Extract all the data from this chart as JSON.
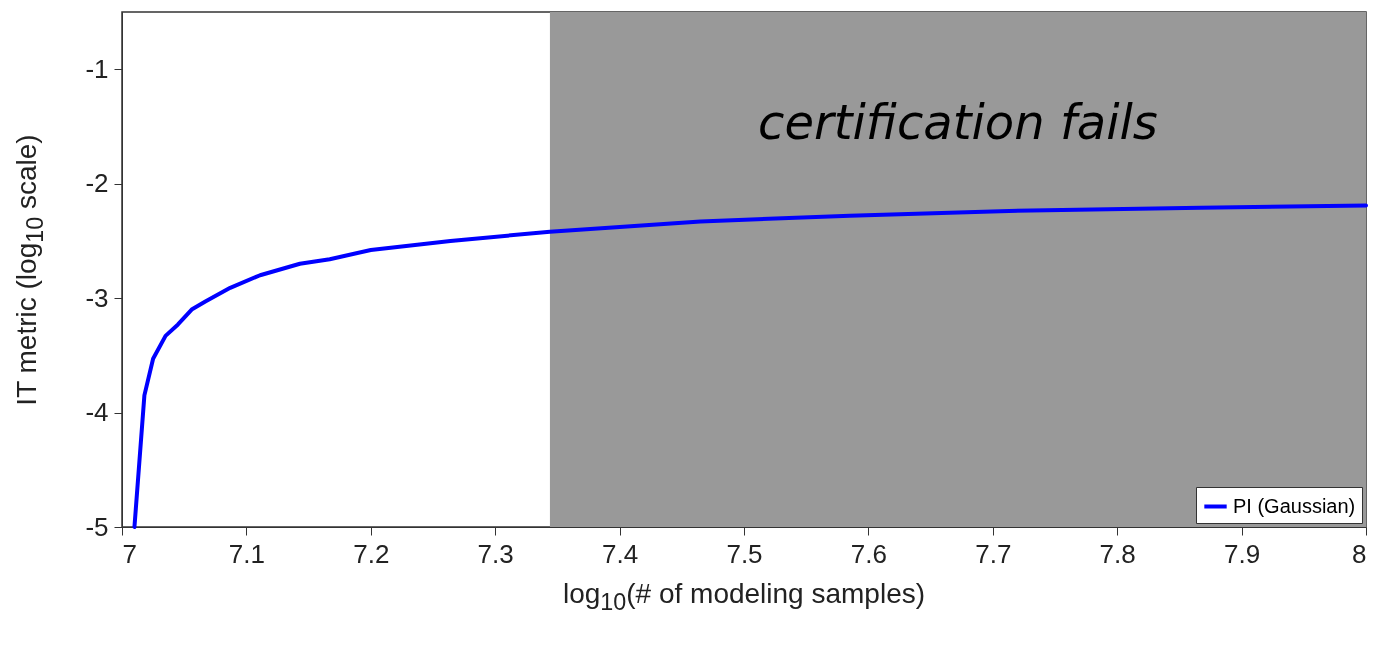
{
  "chart_data": {
    "type": "line",
    "xlabel": "log$_{10}$(# of modeling samples)",
    "ylabel": "IT metric (log$_{10}$ scale)",
    "series": [
      {
        "name": "PI (Gaussian)",
        "color": "#0000ff",
        "x": [
          7.01,
          7.018,
          7.025,
          7.035,
          7.045,
          7.056,
          7.067,
          7.087,
          7.111,
          7.143,
          7.167,
          7.2,
          7.264,
          7.344,
          7.465,
          7.585,
          7.706,
          7.867,
          8.0
        ],
        "values": [
          -5.0,
          -3.85,
          -3.53,
          -3.33,
          -3.23,
          -3.1,
          -3.03,
          -2.91,
          -2.8,
          -2.7,
          -2.66,
          -2.58,
          -2.5,
          -2.42,
          -2.33,
          -2.28,
          -2.24,
          -2.21,
          -2.19
        ]
      }
    ],
    "xlim": [
      7,
      8
    ],
    "xticks": [
      7,
      7.1,
      7.2,
      7.3,
      7.4,
      7.5,
      7.6,
      7.7,
      7.8,
      7.9,
      8
    ],
    "ylim": [
      -5,
      -0.5
    ],
    "yticks": [
      -5,
      -4,
      -3,
      -2,
      -1
    ],
    "bands": [
      {
        "axis": "x",
        "from": 7.344,
        "to": 8,
        "label": "certification fails",
        "color": "#999999"
      }
    ],
    "legend": "bottom right",
    "grid": false,
    "line_style": "solid"
  }
}
